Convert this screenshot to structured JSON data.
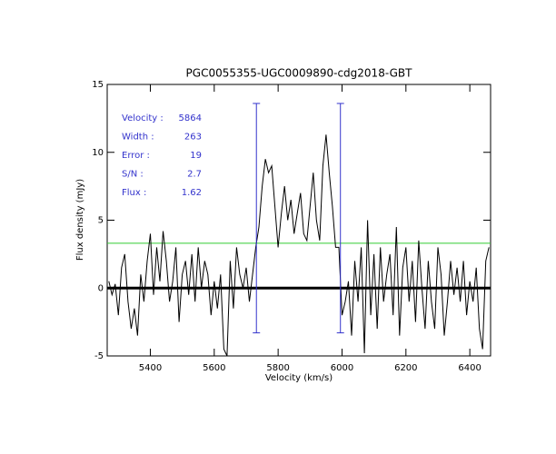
{
  "chart_data": {
    "type": "line",
    "title": "PGC0055355-UGC0009890-cdg2018-GBT",
    "x_label": "Velocity (km/s)",
    "y_label": "Flux density (mJy)",
    "xlim": [
      5265,
      6465
    ],
    "ylim": [
      -5,
      15
    ],
    "xticks": [
      5400,
      5600,
      5800,
      6000,
      6200,
      6400
    ],
    "yticks": [
      -5,
      0,
      5,
      10,
      15
    ],
    "color": "#000000",
    "x": [
      5270,
      5280,
      5290,
      5300,
      5310,
      5320,
      5330,
      5340,
      5350,
      5360,
      5370,
      5380,
      5390,
      5400,
      5410,
      5420,
      5430,
      5440,
      5450,
      5460,
      5470,
      5480,
      5490,
      5500,
      5510,
      5520,
      5530,
      5540,
      5550,
      5560,
      5570,
      5580,
      5590,
      5600,
      5610,
      5620,
      5630,
      5640,
      5650,
      5660,
      5670,
      5680,
      5690,
      5700,
      5710,
      5720,
      5730,
      5740,
      5750,
      5760,
      5770,
      5780,
      5790,
      5800,
      5810,
      5820,
      5830,
      5840,
      5850,
      5860,
      5870,
      5880,
      5890,
      5900,
      5910,
      5920,
      5930,
      5940,
      5950,
      5960,
      5970,
      5980,
      5990,
      6000,
      6010,
      6020,
      6030,
      6040,
      6050,
      6060,
      6070,
      6080,
      6090,
      6100,
      6110,
      6120,
      6130,
      6140,
      6150,
      6160,
      6170,
      6180,
      6190,
      6200,
      6210,
      6220,
      6230,
      6240,
      6250,
      6260,
      6270,
      6280,
      6290,
      6300,
      6310,
      6320,
      6330,
      6340,
      6350,
      6360,
      6370,
      6380,
      6390,
      6400,
      6410,
      6420,
      6430,
      6440,
      6450,
      6460
    ],
    "values": [
      0.5,
      -0.5,
      0.3,
      -2,
      1.5,
      2.5,
      -1,
      -3,
      -1.5,
      -3.5,
      1,
      -1,
      2,
      4,
      -0.5,
      3,
      0.5,
      4.2,
      2,
      -1,
      0.5,
      3,
      -2.5,
      1,
      2,
      -0.5,
      2.5,
      -1,
      3,
      0,
      2,
      1,
      -2,
      0.5,
      -1.5,
      1,
      -4.5,
      -5,
      2,
      -1.5,
      3,
      1,
      0,
      1.5,
      -1,
      1,
      3,
      4.5,
      7.5,
      9.5,
      8.5,
      9,
      6,
      3,
      5.5,
      7.5,
      5,
      6.5,
      4,
      5.5,
      7,
      4,
      3.5,
      6,
      8.5,
      5,
      3.5,
      9,
      11.3,
      8.5,
      6,
      3,
      3,
      -2,
      -1,
      0.5,
      -3.5,
      2,
      -1,
      3,
      -4.8,
      5,
      -2,
      2.5,
      -3,
      3,
      -1,
      1,
      2.5,
      -2,
      4.5,
      -3.5,
      1.5,
      3,
      -1,
      2,
      -2.5,
      3.5,
      0,
      -3,
      2,
      -1,
      -3,
      3,
      1,
      -3.5,
      -1,
      2,
      -0.5,
      1.5,
      -1,
      2,
      -2,
      0.5,
      -1,
      1.5,
      -3,
      -4.5,
      2,
      3
    ],
    "hlines": [
      {
        "value": 0,
        "color": "#000000",
        "width": 3
      },
      {
        "value": 3.3,
        "color": "#33cc33",
        "width": 1
      }
    ],
    "vlines": [
      {
        "x": 5732,
        "ylow": -3.3,
        "yhigh": 13.6
      },
      {
        "x": 5995,
        "ylow": -3.3,
        "yhigh": 13.6
      }
    ],
    "vline_color": "#3333cc",
    "stats": [
      {
        "label": "Velocity :",
        "value": 5864
      },
      {
        "label": "Width :",
        "value": 263
      },
      {
        "label": "Error :",
        "value": 19
      },
      {
        "label": "S/N :",
        "value": 2.7
      },
      {
        "label": "Flux :",
        "value": 1.62
      }
    ]
  }
}
